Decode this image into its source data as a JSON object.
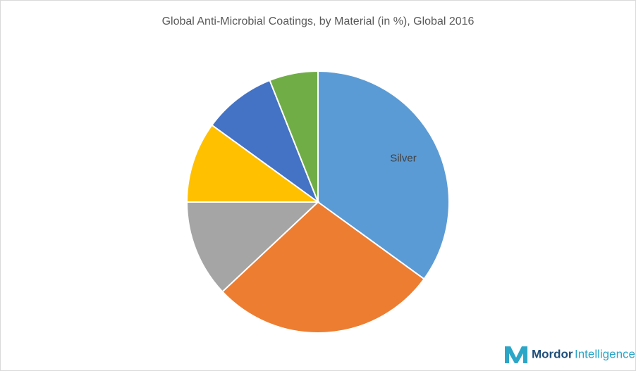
{
  "chart_data": {
    "type": "pie",
    "title": "Global Anti-Microbial Coatings, by Material (in %), Global 2016",
    "categories": [
      "Silver",
      null,
      null,
      null,
      null,
      null
    ],
    "values": [
      35,
      28,
      12,
      10,
      9,
      6
    ],
    "colors": [
      "#5b9bd5",
      "#ed7d31",
      "#a5a5a5",
      "#ffc000",
      "#4472c4",
      "#70ad47"
    ]
  },
  "branding": {
    "name": "Mordor",
    "suffix": "Intelligence"
  }
}
